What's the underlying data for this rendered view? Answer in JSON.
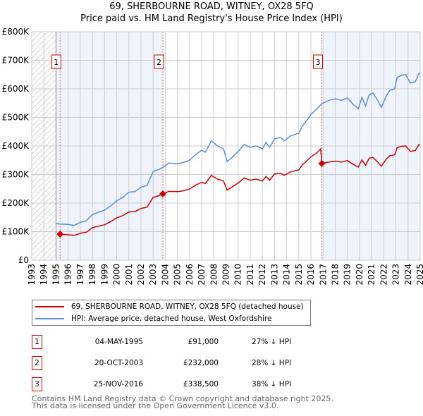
{
  "chart_data": {
    "type": "line",
    "title": "69, SHERBOURNE ROAD, WITNEY, OX28 5FQ",
    "subtitle": "Price paid vs. HM Land Registry's House Price Index (HPI)",
    "xlim": [
      1993,
      2025
    ],
    "ylim": [
      0,
      800000
    ],
    "y_ticks": [
      {
        "v": 0,
        "label": "£0"
      },
      {
        "v": 100000,
        "label": "£100K"
      },
      {
        "v": 200000,
        "label": "£200K"
      },
      {
        "v": 300000,
        "label": "£300K"
      },
      {
        "v": 400000,
        "label": "£400K"
      },
      {
        "v": 500000,
        "label": "£500K"
      },
      {
        "v": 600000,
        "label": "£600K"
      },
      {
        "v": 700000,
        "label": "£700K"
      },
      {
        "v": 800000,
        "label": "£800K"
      }
    ],
    "x_ticks": [
      "1993",
      "1994",
      "1995",
      "1996",
      "1997",
      "1998",
      "1999",
      "2000",
      "2001",
      "2002",
      "2003",
      "2004",
      "2005",
      "2006",
      "2007",
      "2008",
      "2009",
      "2010",
      "2011",
      "2012",
      "2013",
      "2014",
      "2015",
      "2016",
      "2017",
      "2018",
      "2019",
      "2020",
      "2021",
      "2022",
      "2023",
      "2024",
      "2025"
    ],
    "grid": true,
    "colors": {
      "property": "#cc0000",
      "hpi": "#5b8fd4",
      "band": "#eef3fc",
      "sale_line": "#ee6666"
    },
    "series": [
      {
        "name": "69, SHERBOURNE ROAD, WITNEY, OX28 5FQ (detached house)",
        "key": "property",
        "points": [
          [
            1995.34,
            91000
          ],
          [
            1996,
            89000
          ],
          [
            1996.5,
            87000
          ],
          [
            1997,
            94000
          ],
          [
            1997.5,
            98000
          ],
          [
            1998,
            114000
          ],
          [
            1998.5,
            119000
          ],
          [
            1999,
            124000
          ],
          [
            1999.5,
            135000
          ],
          [
            2000,
            148000
          ],
          [
            2000.5,
            156000
          ],
          [
            2001,
            169000
          ],
          [
            2001.5,
            170000
          ],
          [
            2002,
            181000
          ],
          [
            2002.5,
            186000
          ],
          [
            2003,
            220000
          ],
          [
            2003.5,
            226000
          ],
          [
            2003.8,
            232000
          ],
          [
            2004.3,
            241000
          ],
          [
            2005,
            240000
          ],
          [
            2005.5,
            243000
          ],
          [
            2006,
            249000
          ],
          [
            2006.5,
            263000
          ],
          [
            2007,
            273000
          ],
          [
            2007.3,
            268000
          ],
          [
            2007.8,
            297000
          ],
          [
            2008.3,
            284000
          ],
          [
            2008.8,
            277000
          ],
          [
            2009.1,
            245000
          ],
          [
            2009.5,
            256000
          ],
          [
            2010,
            270000
          ],
          [
            2010.5,
            288000
          ],
          [
            2011,
            280000
          ],
          [
            2011.5,
            284000
          ],
          [
            2012,
            277000
          ],
          [
            2012.3,
            293000
          ],
          [
            2012.6,
            280000
          ],
          [
            2013,
            302000
          ],
          [
            2013.5,
            305000
          ],
          [
            2013.8,
            297000
          ],
          [
            2014.3,
            309000
          ],
          [
            2015,
            316000
          ],
          [
            2015.3,
            334000
          ],
          [
            2015.5,
            341000
          ],
          [
            2016,
            362000
          ],
          [
            2016.5,
            376000
          ],
          [
            2016.8,
            390000
          ],
          [
            2016.9,
            338500
          ],
          [
            2017.5,
            344000
          ],
          [
            2018,
            347000
          ],
          [
            2018.5,
            344000
          ],
          [
            2019,
            349000
          ],
          [
            2019.5,
            335000
          ],
          [
            2019.9,
            326000
          ],
          [
            2020.2,
            351000
          ],
          [
            2020.5,
            332000
          ],
          [
            2020.8,
            357000
          ],
          [
            2021.1,
            360000
          ],
          [
            2021.5,
            344000
          ],
          [
            2021.8,
            329000
          ],
          [
            2022.2,
            354000
          ],
          [
            2022.5,
            366000
          ],
          [
            2022.9,
            369000
          ],
          [
            2023.1,
            394000
          ],
          [
            2023.5,
            399000
          ],
          [
            2023.8,
            400000
          ],
          [
            2024.2,
            381000
          ],
          [
            2024.6,
            384000
          ],
          [
            2024.9,
            405000
          ],
          [
            2025,
            402000
          ]
        ]
      },
      {
        "name": "HPI: Average price, detached house, West Oxfordshire",
        "key": "hpi",
        "points": [
          [
            1995,
            128000
          ],
          [
            1996,
            125000
          ],
          [
            1996.5,
            122000
          ],
          [
            1997,
            132000
          ],
          [
            1997.5,
            138000
          ],
          [
            1998,
            160000
          ],
          [
            1998.5,
            168000
          ],
          [
            1999,
            175000
          ],
          [
            1999.5,
            190000
          ],
          [
            2000,
            208000
          ],
          [
            2000.5,
            220000
          ],
          [
            2001,
            238000
          ],
          [
            2001.5,
            240000
          ],
          [
            2002,
            255000
          ],
          [
            2002.5,
            262000
          ],
          [
            2003,
            310000
          ],
          [
            2003.5,
            318000
          ],
          [
            2003.8,
            325000
          ],
          [
            2004.3,
            340000
          ],
          [
            2005,
            338000
          ],
          [
            2005.5,
            342000
          ],
          [
            2006,
            350000
          ],
          [
            2006.5,
            370000
          ],
          [
            2007,
            385000
          ],
          [
            2007.3,
            378000
          ],
          [
            2007.8,
            418000
          ],
          [
            2008.3,
            400000
          ],
          [
            2008.8,
            390000
          ],
          [
            2009.1,
            345000
          ],
          [
            2009.5,
            360000
          ],
          [
            2010,
            380000
          ],
          [
            2010.5,
            405000
          ],
          [
            2011,
            395000
          ],
          [
            2011.5,
            400000
          ],
          [
            2012,
            390000
          ],
          [
            2012.3,
            412000
          ],
          [
            2012.6,
            395000
          ],
          [
            2013,
            425000
          ],
          [
            2013.5,
            430000
          ],
          [
            2013.8,
            418000
          ],
          [
            2014.3,
            435000
          ],
          [
            2015,
            445000
          ],
          [
            2015.3,
            470000
          ],
          [
            2015.5,
            480000
          ],
          [
            2016,
            510000
          ],
          [
            2016.5,
            530000
          ],
          [
            2016.9,
            548000
          ],
          [
            2017.5,
            560000
          ],
          [
            2018,
            565000
          ],
          [
            2018.5,
            560000
          ],
          [
            2019,
            568000
          ],
          [
            2019.5,
            545000
          ],
          [
            2019.9,
            530000
          ],
          [
            2020.2,
            570000
          ],
          [
            2020.5,
            540000
          ],
          [
            2020.8,
            580000
          ],
          [
            2021.1,
            585000
          ],
          [
            2021.5,
            560000
          ],
          [
            2021.8,
            535000
          ],
          [
            2022.2,
            575000
          ],
          [
            2022.5,
            595000
          ],
          [
            2022.9,
            600000
          ],
          [
            2023.1,
            640000
          ],
          [
            2023.5,
            648000
          ],
          [
            2023.8,
            650000
          ],
          [
            2024.2,
            620000
          ],
          [
            2024.6,
            625000
          ],
          [
            2024.9,
            655000
          ],
          [
            2025,
            650000
          ]
        ]
      }
    ],
    "hatched_until": 1995,
    "sales": [
      {
        "num": "1",
        "x": 1995.34,
        "price": 91000,
        "date": "04-MAY-1995",
        "price_label": "£91,000",
        "hpi_label": "27% ↓ HPI"
      },
      {
        "num": "2",
        "x": 2003.8,
        "price": 232000,
        "date": "20-OCT-2003",
        "price_label": "£232,000",
        "hpi_label": "28% ↓ HPI"
      },
      {
        "num": "3",
        "x": 2016.9,
        "price": 338500,
        "date": "25-NOV-2016",
        "price_label": "£338,500",
        "hpi_label": "38% ↓ HPI"
      }
    ]
  },
  "footer": {
    "line1": "Contains HM Land Registry data © Crown copyright and database right 2025.",
    "line2": "This data is licensed under the Open Government Licence v3.0."
  }
}
